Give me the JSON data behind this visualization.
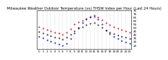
{
  "title": "Milwaukee Weather Outdoor Temperature (vs) THSW Index per Hour (Last 24 Hours)",
  "title_fontsize": 3.8,
  "bg_color": "#ffffff",
  "plot_bg_color": "#ffffff",
  "grid_color": "#bbbbbb",
  "xlabel_fontsize": 3.0,
  "ylabel_fontsize": 3.2,
  "hours": [
    0,
    1,
    2,
    3,
    4,
    5,
    6,
    7,
    8,
    9,
    10,
    11,
    12,
    13,
    14,
    15,
    16,
    17,
    18,
    19,
    20,
    21,
    22,
    23
  ],
  "temp_red": [
    52,
    50,
    48,
    46,
    44,
    43,
    41,
    44,
    49,
    55,
    58,
    60,
    63,
    66,
    68,
    65,
    61,
    57,
    54,
    52,
    50,
    48,
    46,
    44
  ],
  "thsw_blue": [
    38,
    36,
    33,
    31,
    29,
    27,
    25,
    28,
    35,
    43,
    51,
    57,
    62,
    65,
    66,
    62,
    55,
    47,
    42,
    38,
    35,
    32,
    30,
    28
  ],
  "black_line": [
    45,
    43,
    41,
    39,
    37,
    36,
    34,
    37,
    41,
    46,
    50,
    52,
    54,
    56,
    57,
    54,
    51,
    47,
    44,
    42,
    40,
    38,
    37,
    35
  ],
  "ylim_min": 20,
  "ylim_max": 75,
  "yticks": [
    25,
    30,
    35,
    40,
    45,
    50,
    55,
    60,
    65,
    70,
    75
  ],
  "ytick_labels": [
    "25",
    "30",
    "35",
    "40",
    "45",
    "50",
    "55",
    "60",
    "65",
    "70",
    "75"
  ],
  "red_color": "#dd0000",
  "blue_color": "#0000cc",
  "black_color": "#000000",
  "marker_size": 1.0,
  "line_width": 0.4
}
